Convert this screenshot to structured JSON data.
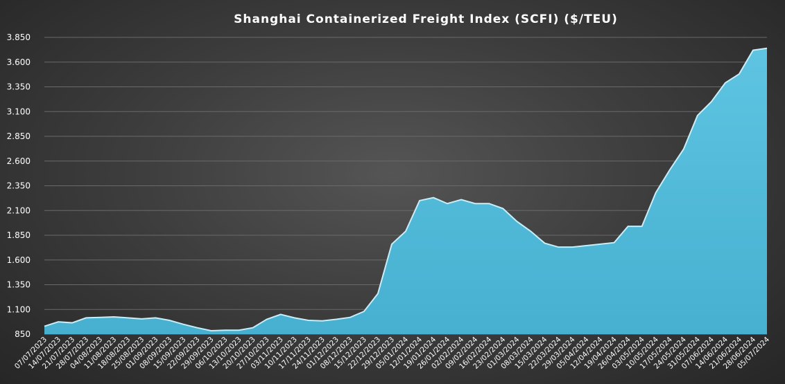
{
  "colors": {
    "area_fill": "#4fb8d8",
    "area_stroke": "#c8eef8",
    "grid": "#6a6a6a",
    "text": "#ffffff"
  },
  "chart_data": {
    "type": "area",
    "title": "Shanghai Containerized Freight Index (SCFI) ($/TEU)",
    "xlabel": "",
    "ylabel": "",
    "ylim": [
      850,
      3850
    ],
    "yticks": [
      "850",
      "1.100",
      "1.350",
      "1.600",
      "1.850",
      "2.100",
      "2.350",
      "2.600",
      "2.850",
      "3.100",
      "3.350",
      "3.600",
      "3.850"
    ],
    "ytick_values": [
      850,
      1100,
      1350,
      1600,
      1850,
      2100,
      2350,
      2600,
      2850,
      3100,
      3350,
      3600,
      3850
    ],
    "grid": true,
    "legend": "none",
    "x": [
      "07/07/2023",
      "14/07/2023",
      "21/07/2023",
      "28/07/2023",
      "04/08/2023",
      "11/08/2023",
      "18/08/2023",
      "25/08/2023",
      "01/09/2023",
      "08/09/2023",
      "15/09/2023",
      "22/09/2023",
      "29/09/2023",
      "06/10/2023",
      "13/10/2023",
      "20/10/2023",
      "27/10/2023",
      "03/11/2023",
      "10/11/2023",
      "17/11/2023",
      "24/11/2023",
      "01/12/2023",
      "08/12/2023",
      "15/12/2023",
      "22/12/2023",
      "29/12/2023",
      "05/01/2024",
      "12/01/2024",
      "19/01/2024",
      "26/01/2024",
      "02/02/2024",
      "09/02/2024",
      "16/02/2024",
      "23/02/2024",
      "01/03/2024",
      "08/03/2024",
      "15/03/2024",
      "22/03/2024",
      "29/03/2024",
      "05/04/2024",
      "12/04/2024",
      "19/04/2024",
      "26/04/2024",
      "03/05/2024",
      "10/05/2024",
      "17/05/2024",
      "24/05/2024",
      "31/05/2024",
      "07/06/2024",
      "14/06/2024",
      "21/06/2024",
      "28/06/2024",
      "05/07/2024"
    ],
    "series": [
      {
        "values": [
          930,
          975,
          965,
          1015,
          1020,
          1025,
          1015,
          1005,
          1015,
          990,
          950,
          915,
          885,
          890,
          890,
          915,
          1000,
          1050,
          1015,
          990,
          985,
          1000,
          1020,
          1080,
          1260,
          1760,
          1890,
          2200,
          2230,
          2170,
          2210,
          2170,
          2170,
          2120,
          1990,
          1890,
          1770,
          1730,
          1730,
          1745,
          1760,
          1775,
          1940,
          1940,
          2280,
          2510,
          2720,
          3060,
          3200,
          3390,
          3480,
          3720,
          3740
        ]
      }
    ]
  }
}
